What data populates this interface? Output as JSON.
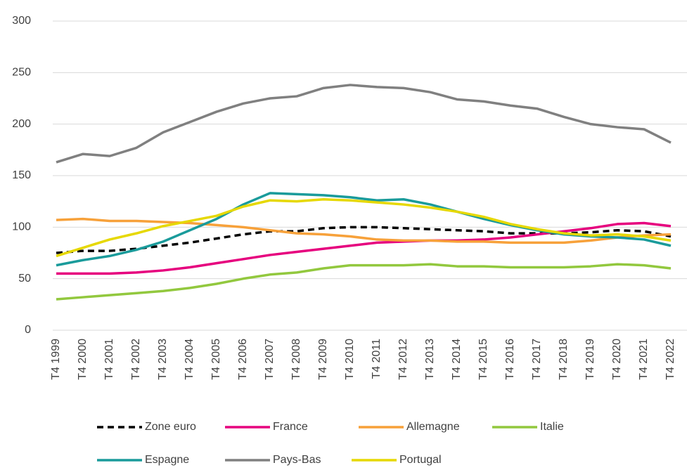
{
  "chart_data": {
    "type": "line",
    "categories": [
      "T4 1999",
      "T4 2000",
      "T4 2001",
      "T4 2002",
      "T4 2003",
      "T4 2004",
      "T4 2005",
      "T4 2006",
      "T4 2007",
      "T4 2008",
      "T4 2009",
      "T4 2010",
      "T4 2011",
      "T4 2012",
      "T4 2013",
      "T4 2014",
      "T4 2015",
      "T4 2016",
      "T4 2017",
      "T4 2018",
      "T4 2019",
      "T4 2020",
      "T4 2021",
      "T4 2022"
    ],
    "ylim": [
      0,
      300
    ],
    "yticks": [
      0,
      50,
      100,
      150,
      200,
      250,
      300
    ],
    "grid": true,
    "series": [
      {
        "name": "Zone euro",
        "color": "#000000",
        "dashed": true,
        "values": [
          75,
          77,
          77,
          79,
          82,
          85,
          89,
          93,
          96,
          96,
          99,
          100,
          100,
          99,
          98,
          97,
          96,
          94,
          94,
          94,
          95,
          97,
          96,
          91
        ]
      },
      {
        "name": "France",
        "color": "#e6007e",
        "values": [
          55,
          55,
          55,
          56,
          58,
          61,
          65,
          69,
          73,
          76,
          79,
          82,
          85,
          86,
          87,
          87,
          88,
          90,
          93,
          96,
          99,
          103,
          104,
          101
        ]
      },
      {
        "name": "Allemagne",
        "color": "#f7a13a",
        "values": [
          107,
          108,
          106,
          106,
          105,
          104,
          102,
          100,
          97,
          94,
          93,
          91,
          88,
          87,
          87,
          86,
          86,
          85,
          85,
          85,
          87,
          90,
          92,
          93
        ]
      },
      {
        "name": "Italie",
        "color": "#92c83e",
        "values": [
          30,
          32,
          34,
          36,
          38,
          41,
          45,
          50,
          54,
          56,
          60,
          63,
          63,
          63,
          64,
          62,
          62,
          61,
          61,
          61,
          62,
          64,
          63,
          60
        ]
      },
      {
        "name": "Espagne",
        "color": "#1a9b9b",
        "values": [
          63,
          68,
          72,
          78,
          86,
          97,
          108,
          122,
          133,
          132,
          131,
          129,
          126,
          127,
          122,
          115,
          108,
          102,
          97,
          93,
          91,
          90,
          88,
          82
        ]
      },
      {
        "name": "Pays-Bas",
        "color": "#808080",
        "values": [
          163,
          171,
          169,
          177,
          192,
          202,
          212,
          220,
          225,
          227,
          235,
          238,
          236,
          235,
          231,
          224,
          222,
          218,
          215,
          207,
          200,
          197,
          195,
          182
        ]
      },
      {
        "name": "Portugal",
        "color": "#e6d800",
        "values": [
          72,
          80,
          88,
          94,
          101,
          106,
          111,
          120,
          126,
          125,
          127,
          126,
          124,
          122,
          119,
          115,
          110,
          103,
          98,
          94,
          92,
          93,
          91,
          87
        ]
      }
    ]
  }
}
